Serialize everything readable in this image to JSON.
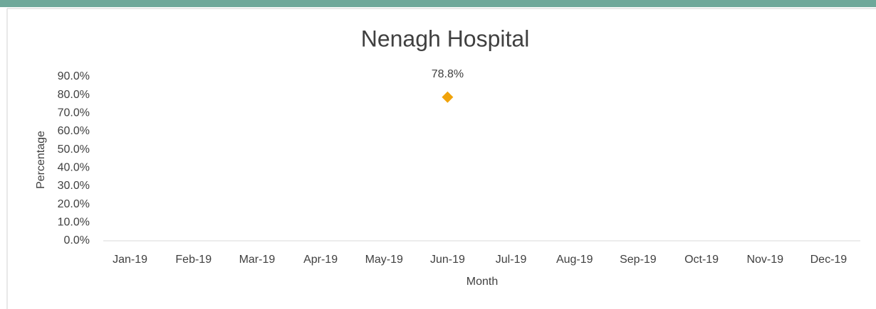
{
  "chart_data": {
    "type": "line",
    "title": "Nenagh Hospital",
    "x_label": "Month",
    "y_label": "Percentage",
    "categories": [
      "Jan-19",
      "Feb-19",
      "Mar-19",
      "Apr-19",
      "May-19",
      "Jun-19",
      "Jul-19",
      "Aug-19",
      "Sep-19",
      "Oct-19",
      "Nov-19",
      "Dec-19"
    ],
    "series": [
      {
        "name": "Nenagh Hospital",
        "color": "#f0a30a",
        "values": [
          null,
          null,
          null,
          null,
          null,
          78.8,
          null,
          null,
          null,
          null,
          null,
          null
        ],
        "value_labels": [
          null,
          null,
          null,
          null,
          null,
          "78.8%",
          null,
          null,
          null,
          null,
          null,
          null
        ]
      }
    ],
    "ylim": [
      0,
      90
    ],
    "yticks": [
      {
        "value": 0,
        "label": "0.0%"
      },
      {
        "value": 10,
        "label": "10.0%"
      },
      {
        "value": 20,
        "label": "20.0%"
      },
      {
        "value": 30,
        "label": "30.0%"
      },
      {
        "value": 40,
        "label": "40.0%"
      },
      {
        "value": 50,
        "label": "50.0%"
      },
      {
        "value": 60,
        "label": "60.0%"
      },
      {
        "value": 70,
        "label": "70.0%"
      },
      {
        "value": 80,
        "label": "80.0%"
      },
      {
        "value": 90,
        "label": "90.0%"
      }
    ],
    "grid": false
  }
}
